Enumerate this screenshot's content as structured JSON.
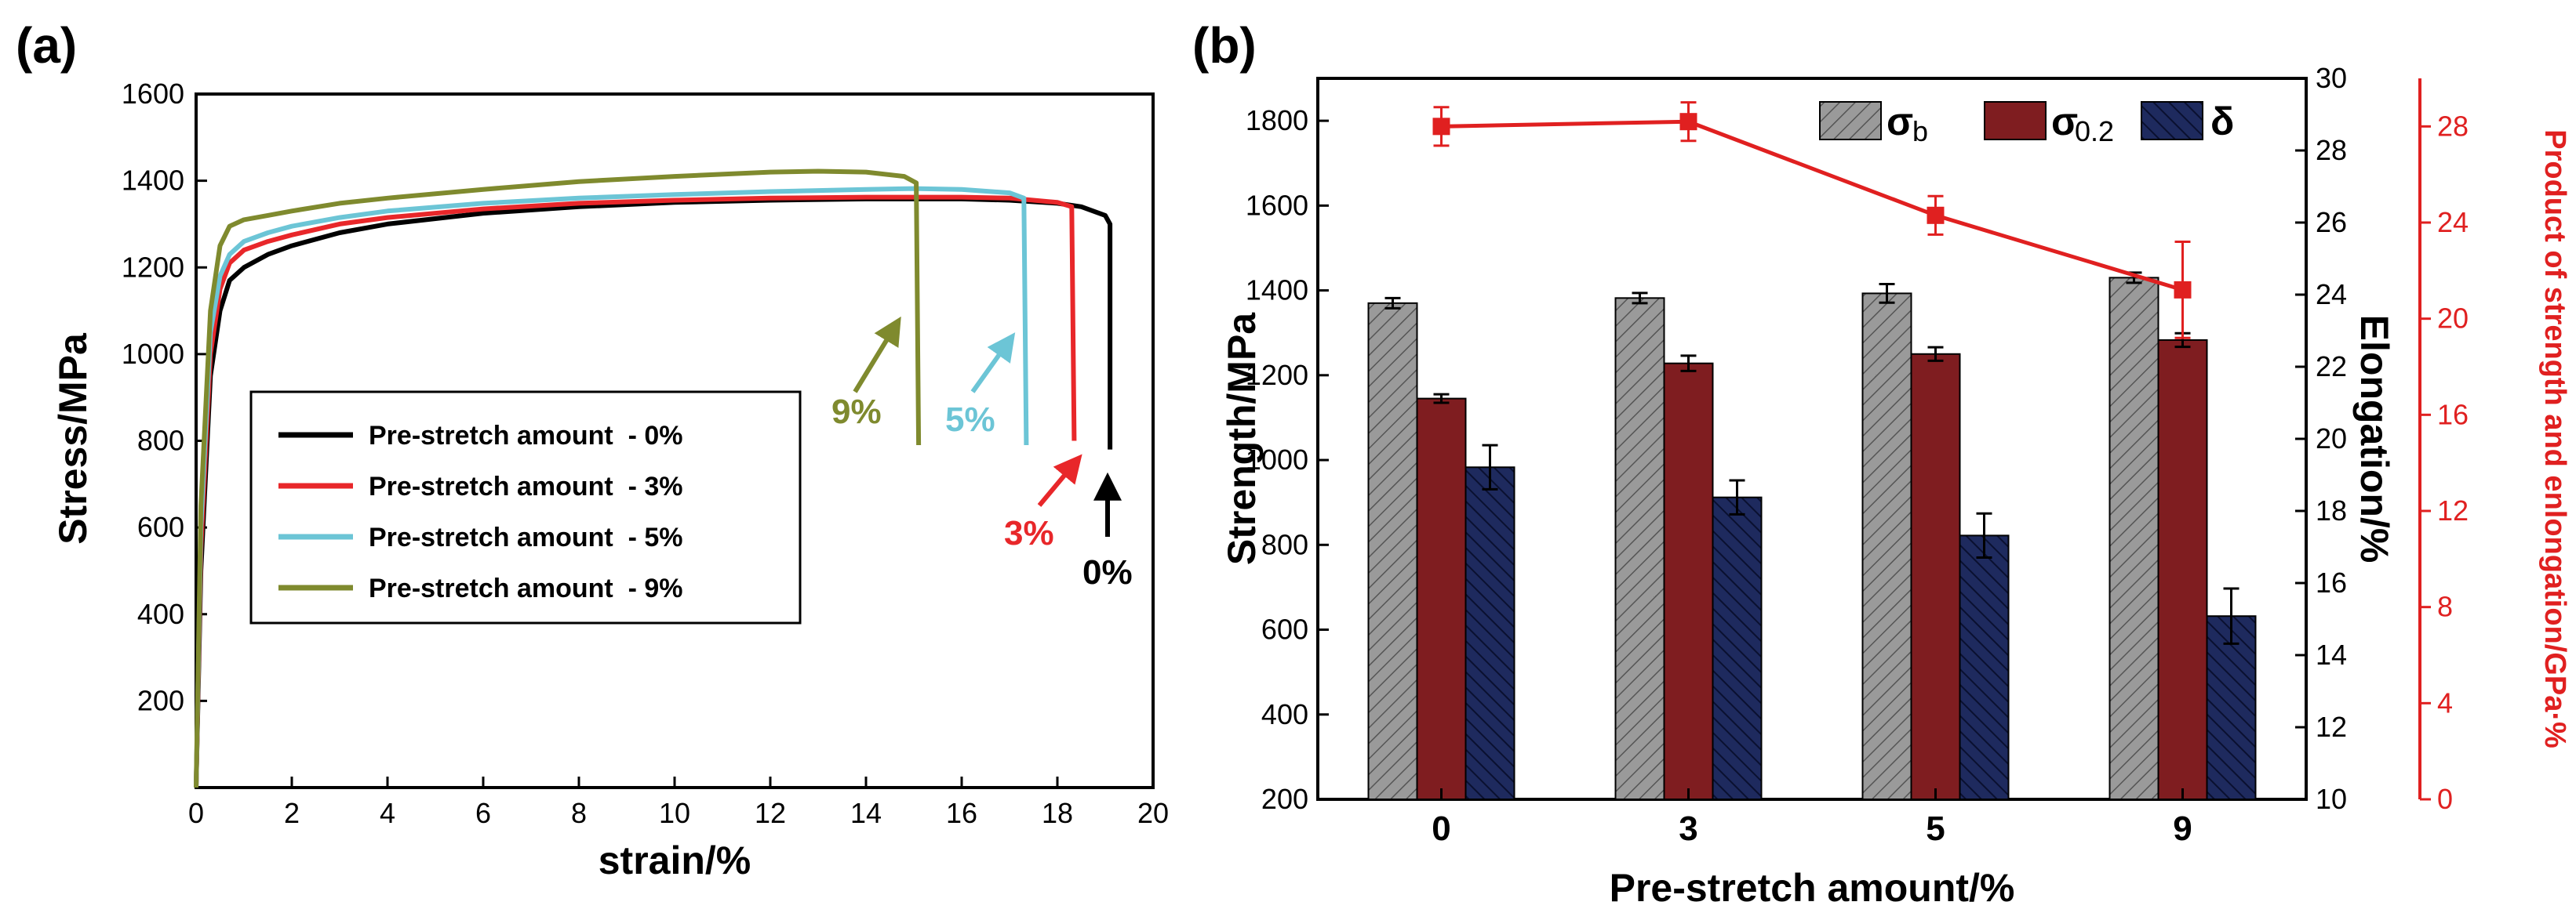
{
  "chart_data": [
    {
      "panel": "(a)",
      "type": "line",
      "xlabel": "strain/%",
      "ylabel": "Stress/MPa",
      "xlim": [
        0,
        20
      ],
      "ylim": [
        0,
        1600
      ],
      "xticks": [
        0,
        2,
        4,
        6,
        8,
        10,
        12,
        14,
        16,
        18,
        20
      ],
      "yticks": [
        200,
        400,
        600,
        800,
        1000,
        1200,
        1400,
        1600
      ],
      "series": [
        {
          "name": "Pre-stretch amount  - 0%",
          "color": "#000000",
          "x": [
            0,
            0.1,
            0.3,
            0.5,
            0.7,
            1.0,
            1.5,
            2,
            3,
            4,
            6,
            8,
            10,
            12,
            14,
            16,
            17,
            18,
            18.5,
            19.0,
            19.1,
            19.1
          ],
          "y": [
            0,
            500,
            950,
            1100,
            1170,
            1200,
            1230,
            1250,
            1280,
            1300,
            1325,
            1340,
            1350,
            1355,
            1358,
            1358,
            1355,
            1348,
            1340,
            1320,
            1300,
            780
          ]
        },
        {
          "name": "Pre-stretch amount  - 3%",
          "color": "#e8272a",
          "x": [
            0,
            0.1,
            0.3,
            0.5,
            0.7,
            1.0,
            1.5,
            2,
            3,
            4,
            6,
            8,
            10,
            12,
            14,
            16,
            17,
            18,
            18.3,
            18.35
          ],
          "y": [
            0,
            550,
            1000,
            1150,
            1210,
            1240,
            1260,
            1275,
            1300,
            1315,
            1335,
            1348,
            1355,
            1360,
            1362,
            1362,
            1360,
            1350,
            1340,
            800
          ]
        },
        {
          "name": "Pre-stretch amount  - 5%",
          "color": "#6cc5d6",
          "x": [
            0,
            0.1,
            0.3,
            0.5,
            0.7,
            1.0,
            1.5,
            2,
            3,
            4,
            6,
            8,
            10,
            12,
            14,
            15,
            16,
            17,
            17.3,
            17.35
          ],
          "y": [
            0,
            600,
            1050,
            1180,
            1230,
            1260,
            1280,
            1295,
            1315,
            1330,
            1348,
            1360,
            1368,
            1375,
            1380,
            1382,
            1380,
            1372,
            1360,
            790
          ]
        },
        {
          "name": "Pre-stretch amount  - 9%",
          "color": "#7f8a2e",
          "x": [
            0,
            0.1,
            0.3,
            0.5,
            0.7,
            1.0,
            1.5,
            2,
            3,
            4,
            6,
            8,
            10,
            12,
            13,
            14,
            14.8,
            15.05,
            15.1
          ],
          "y": [
            0,
            650,
            1100,
            1250,
            1295,
            1310,
            1320,
            1330,
            1348,
            1360,
            1380,
            1398,
            1410,
            1420,
            1422,
            1420,
            1410,
            1395,
            790
          ]
        }
      ],
      "annotations": [
        {
          "text": "9%",
          "color": "#7f8a2e"
        },
        {
          "text": "5%",
          "color": "#6cc5d6"
        },
        {
          "text": "3%",
          "color": "#e8272a"
        },
        {
          "text": "0%",
          "color": "#000000"
        }
      ]
    },
    {
      "panel": "(b)",
      "type": "bar",
      "xlabel": "Pre-stretch amount/%",
      "ylabel": "Strength/MPa",
      "ylabel_right": "Elongation/%",
      "ylabel_far_right": "Product of strength and enlongation/GPa·%",
      "categories": [
        "0",
        "3",
        "5",
        "9"
      ],
      "ylim": [
        200,
        1900
      ],
      "yticks": [
        200,
        400,
        600,
        800,
        1000,
        1200,
        1400,
        1600,
        1800
      ],
      "ylim_right": [
        10,
        30
      ],
      "yticks_right": [
        10,
        12,
        14,
        16,
        18,
        20,
        22,
        24,
        26,
        28,
        30
      ],
      "ylim_far_right": [
        0,
        30
      ],
      "yticks_far_right": [
        0,
        4,
        8,
        12,
        16,
        20,
        24,
        28
      ],
      "legend": [
        "σ",
        "σ",
        "δ"
      ],
      "legend_subscripts": [
        "b",
        "0.2",
        ""
      ],
      "series": [
        {
          "name": "σb",
          "axis": "left",
          "values": [
            1370,
            1382,
            1393,
            1430
          ],
          "errors": [
            12,
            12,
            22,
            12
          ],
          "color": "#a0a0a0"
        },
        {
          "name": "σ0.2",
          "axis": "left",
          "values": [
            1145,
            1228,
            1250,
            1283
          ],
          "errors": [
            10,
            18,
            16,
            16
          ],
          "color": "#7f1d20"
        },
        {
          "name": "δ",
          "axis": "left",
          "values": [
            983,
            912,
            822,
            632
          ],
          "errors": [
            52,
            40,
            52,
            65
          ],
          "color": "#1e2a5e"
        }
      ],
      "line_series": {
        "name": "Product of strength and enlongation",
        "axis": "far_right",
        "values": [
          28.0,
          28.2,
          24.3,
          21.2
        ],
        "errors": [
          0.8,
          0.8,
          0.8,
          2.0
        ],
        "color": "#e02020"
      }
    }
  ]
}
